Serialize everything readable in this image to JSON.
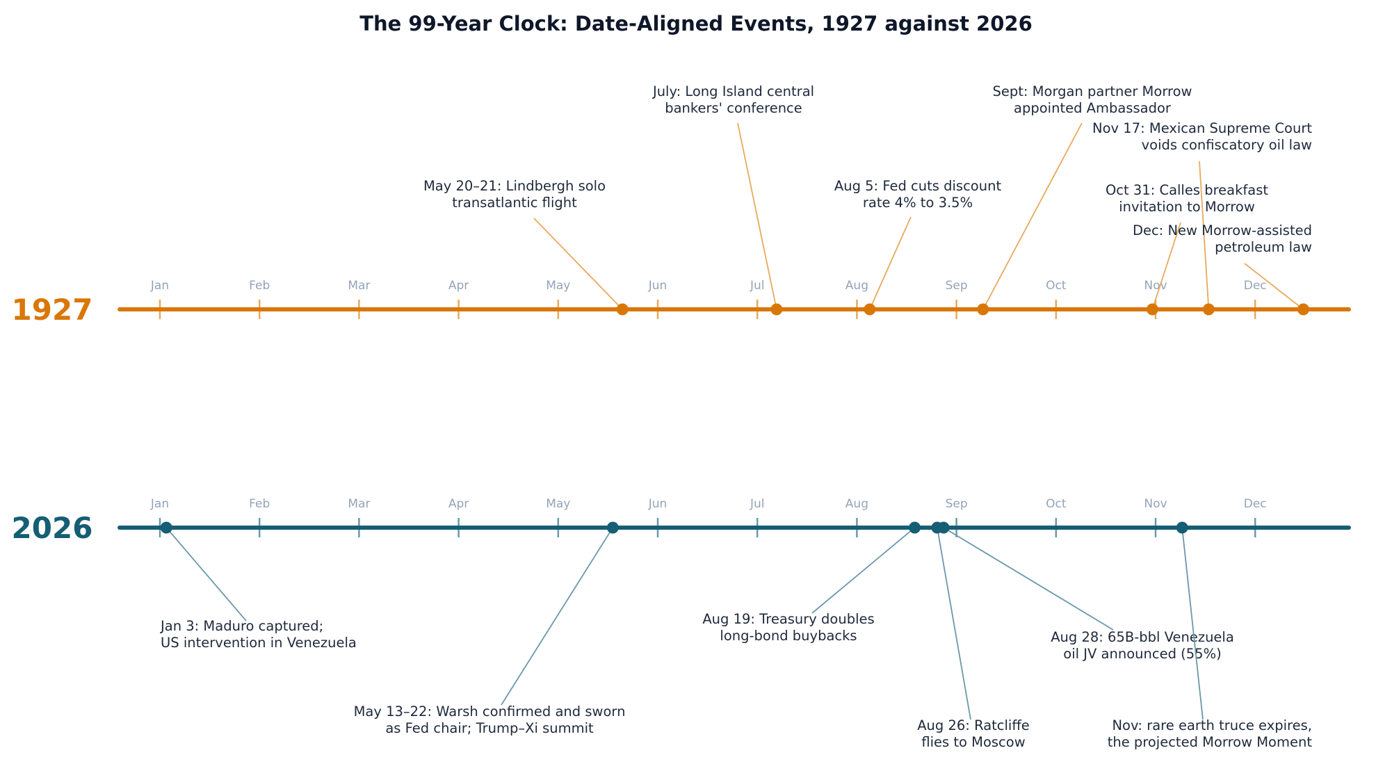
{
  "chart_data": {
    "type": "timeline",
    "title": "The 99-Year Clock: Date-Aligned Events, 1927 against 2026",
    "months": [
      "Jan",
      "Feb",
      "Mar",
      "Apr",
      "May",
      "Jun",
      "Jul",
      "Aug",
      "Sep",
      "Oct",
      "Nov",
      "Dec"
    ],
    "colors": {
      "1927": "#d97706",
      "1927_connector": "#e8a95c",
      "2026": "#155e75",
      "2026_connector": "#6b98ab",
      "month_label": "#94a3b8",
      "text": "#1e293b"
    },
    "tracks": [
      {
        "year": "1927",
        "events": [
          {
            "date": "1927-05-21",
            "lines": [
              "May 20–21: Lindbergh solo",
              "transatlantic flight"
            ]
          },
          {
            "date": "1927-07-07",
            "lines": [
              "July: Long Island central",
              "bankers' conference"
            ]
          },
          {
            "date": "1927-08-05",
            "lines": [
              "Aug 5: Fed cuts discount",
              "rate 4% to 3.5%"
            ]
          },
          {
            "date": "1927-09-09",
            "lines": [
              "Sept: Morgan partner Morrow",
              "appointed Ambassador"
            ]
          },
          {
            "date": "1927-10-31",
            "lines": [
              "Oct 31: Calles breakfast",
              "invitation to Morrow"
            ]
          },
          {
            "date": "1927-11-17",
            "lines": [
              "Nov 17: Mexican Supreme Court",
              "voids confiscatory oil law"
            ]
          },
          {
            "date": "1927-12-16",
            "lines": [
              "Dec: New Morrow-assisted",
              "petroleum law"
            ]
          }
        ]
      },
      {
        "year": "2026",
        "events": [
          {
            "date": "2026-01-03",
            "lines": [
              "Jan 3: Maduro captured;",
              "US intervention in Venezuela"
            ]
          },
          {
            "date": "2026-05-18",
            "lines": [
              "May 13–22: Warsh confirmed and sworn",
              "as Fed chair; Trump–Xi summit"
            ]
          },
          {
            "date": "2026-08-19",
            "lines": [
              "Aug 19: Treasury doubles",
              "long-bond buybacks"
            ]
          },
          {
            "date": "2026-08-26",
            "lines": [
              "Aug 26: Ratcliffe",
              "flies to Moscow"
            ]
          },
          {
            "date": "2026-08-28",
            "lines": [
              "Aug 28: 65B-bbl Venezuela",
              "oil JV announced (55%)"
            ]
          },
          {
            "date": "2026-11-09",
            "lines": [
              "Nov: rare earth truce expires,",
              "the projected Morrow Moment"
            ]
          }
        ]
      }
    ]
  }
}
